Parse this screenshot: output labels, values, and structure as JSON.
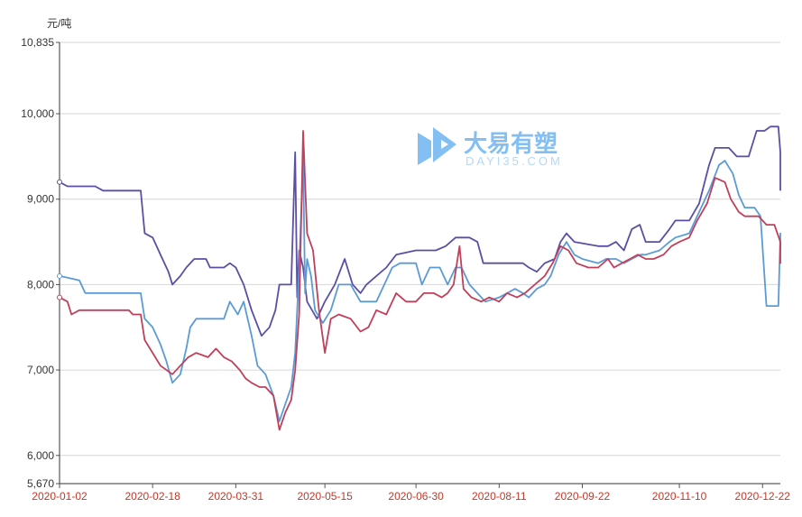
{
  "chart_data": {
    "type": "line",
    "y_unit": "元/吨",
    "ylim": [
      5670,
      10835
    ],
    "y_ticks": [
      {
        "value": 5670,
        "label": "5,670"
      },
      {
        "value": 6000,
        "label": "6,000"
      },
      {
        "value": 7000,
        "label": "7,000"
      },
      {
        "value": 8000,
        "label": "8,000"
      },
      {
        "value": 9000,
        "label": "9,000"
      },
      {
        "value": 10000,
        "label": "10,000"
      },
      {
        "value": 10835,
        "label": "10,835"
      }
    ],
    "x_range": [
      "2020-01-02",
      "2020-12-31"
    ],
    "x_ticks": [
      "2020-01-02",
      "2020-02-18",
      "2020-03-31",
      "2020-05-15",
      "2020-06-30",
      "2020-08-11",
      "2020-09-22",
      "2020-11-10",
      "2020-12-22"
    ],
    "grid": true,
    "legend": "none",
    "series": [
      {
        "color": "#5b4fa5",
        "points": [
          [
            "2020-01-02",
            9200
          ],
          [
            "2020-01-06",
            9150
          ],
          [
            "2020-01-20",
            9150
          ],
          [
            "2020-01-24",
            9100
          ],
          [
            "2020-02-05",
            9100
          ],
          [
            "2020-02-12",
            9100
          ],
          [
            "2020-02-14",
            8600
          ],
          [
            "2020-02-18",
            8550
          ],
          [
            "2020-02-22",
            8350
          ],
          [
            "2020-02-26",
            8150
          ],
          [
            "2020-02-28",
            8000
          ],
          [
            "2020-03-03",
            8100
          ],
          [
            "2020-03-06",
            8200
          ],
          [
            "2020-03-10",
            8300
          ],
          [
            "2020-03-16",
            8300
          ],
          [
            "2020-03-18",
            8200
          ],
          [
            "2020-03-25",
            8200
          ],
          [
            "2020-03-28",
            8250
          ],
          [
            "2020-03-31",
            8200
          ],
          [
            "2020-04-04",
            8000
          ],
          [
            "2020-04-08",
            7700
          ],
          [
            "2020-04-13",
            7400
          ],
          [
            "2020-04-17",
            7500
          ],
          [
            "2020-04-20",
            7700
          ],
          [
            "2020-04-22",
            8000
          ],
          [
            "2020-04-28",
            8000
          ],
          [
            "2020-04-30",
            9550
          ],
          [
            "2020-05-01",
            7850
          ],
          [
            "2020-05-02",
            8400
          ],
          [
            "2020-05-04",
            8200
          ],
          [
            "2020-05-06",
            7800
          ],
          [
            "2020-05-11",
            7600
          ],
          [
            "2020-05-13",
            7700
          ],
          [
            "2020-05-15",
            7800
          ],
          [
            "2020-05-20",
            8000
          ],
          [
            "2020-05-25",
            8300
          ],
          [
            "2020-05-29",
            8000
          ],
          [
            "2020-06-02",
            7900
          ],
          [
            "2020-06-05",
            8000
          ],
          [
            "2020-06-10",
            8100
          ],
          [
            "2020-06-15",
            8200
          ],
          [
            "2020-06-20",
            8350
          ],
          [
            "2020-06-30",
            8400
          ],
          [
            "2020-07-10",
            8400
          ],
          [
            "2020-07-15",
            8450
          ],
          [
            "2020-07-20",
            8550
          ],
          [
            "2020-07-27",
            8550
          ],
          [
            "2020-07-31",
            8500
          ],
          [
            "2020-08-03",
            8250
          ],
          [
            "2020-08-20",
            8250
          ],
          [
            "2020-08-23",
            8250
          ],
          [
            "2020-08-26",
            8200
          ],
          [
            "2020-08-30",
            8150
          ],
          [
            "2020-09-03",
            8250
          ],
          [
            "2020-09-08",
            8300
          ],
          [
            "2020-09-11",
            8500
          ],
          [
            "2020-09-14",
            8600
          ],
          [
            "2020-09-18",
            8500
          ],
          [
            "2020-09-30",
            8450
          ],
          [
            "2020-10-05",
            8450
          ],
          [
            "2020-10-09",
            8500
          ],
          [
            "2020-10-13",
            8400
          ],
          [
            "2020-10-17",
            8650
          ],
          [
            "2020-10-21",
            8700
          ],
          [
            "2020-10-24",
            8500
          ],
          [
            "2020-10-31",
            8500
          ],
          [
            "2020-11-05",
            8650
          ],
          [
            "2020-11-08",
            8750
          ],
          [
            "2020-11-15",
            8750
          ],
          [
            "2020-11-20",
            8950
          ],
          [
            "2020-11-25",
            9400
          ],
          [
            "2020-11-28",
            9600
          ],
          [
            "2020-12-05",
            9600
          ],
          [
            "2020-12-09",
            9500
          ],
          [
            "2020-12-15",
            9500
          ],
          [
            "2020-12-19",
            9800
          ],
          [
            "2020-12-23",
            9800
          ],
          [
            "2020-12-26",
            9850
          ],
          [
            "2020-12-30",
            9850
          ],
          [
            "2021-01-04",
            9550
          ],
          [
            "2021-01-06",
            9100
          ],
          [
            "2021-01-10",
            9100
          ]
        ]
      },
      {
        "color": "#5b9bd5",
        "points": [
          [
            "2020-01-02",
            8100
          ],
          [
            "2020-01-06",
            8080
          ],
          [
            "2020-01-12",
            8050
          ],
          [
            "2020-01-15",
            7900
          ],
          [
            "2020-02-06",
            7900
          ],
          [
            "2020-02-12",
            7900
          ],
          [
            "2020-02-14",
            7600
          ],
          [
            "2020-02-18",
            7500
          ],
          [
            "2020-02-22",
            7300
          ],
          [
            "2020-02-25",
            7100
          ],
          [
            "2020-02-28",
            6850
          ],
          [
            "2020-03-03",
            6950
          ],
          [
            "2020-03-06",
            7250
          ],
          [
            "2020-03-08",
            7500
          ],
          [
            "2020-03-11",
            7600
          ],
          [
            "2020-03-25",
            7600
          ],
          [
            "2020-03-28",
            7800
          ],
          [
            "2020-04-01",
            7650
          ],
          [
            "2020-04-04",
            7800
          ],
          [
            "2020-04-08",
            7400
          ],
          [
            "2020-04-11",
            7050
          ],
          [
            "2020-04-15",
            6950
          ],
          [
            "2020-04-19",
            6700
          ],
          [
            "2020-04-22",
            6400
          ],
          [
            "2020-04-25",
            6600
          ],
          [
            "2020-04-28",
            6800
          ],
          [
            "2020-04-30",
            7200
          ],
          [
            "2020-05-02",
            8200
          ],
          [
            "2020-05-04",
            9450
          ],
          [
            "2020-05-05",
            7900
          ],
          [
            "2020-05-06",
            8300
          ],
          [
            "2020-05-08",
            8100
          ],
          [
            "2020-05-10",
            7700
          ],
          [
            "2020-05-14",
            7550
          ],
          [
            "2020-05-18",
            7700
          ],
          [
            "2020-05-22",
            8000
          ],
          [
            "2020-05-28",
            8000
          ],
          [
            "2020-06-02",
            7800
          ],
          [
            "2020-06-10",
            7800
          ],
          [
            "2020-06-14",
            8000
          ],
          [
            "2020-06-18",
            8200
          ],
          [
            "2020-06-22",
            8250
          ],
          [
            "2020-06-30",
            8250
          ],
          [
            "2020-07-03",
            8000
          ],
          [
            "2020-07-07",
            8200
          ],
          [
            "2020-07-12",
            8200
          ],
          [
            "2020-07-16",
            8000
          ],
          [
            "2020-07-20",
            8200
          ],
          [
            "2020-07-23",
            8200
          ],
          [
            "2020-07-27",
            8000
          ],
          [
            "2020-07-31",
            7900
          ],
          [
            "2020-08-04",
            7800
          ],
          [
            "2020-08-11",
            7850
          ],
          [
            "2020-08-15",
            7900
          ],
          [
            "2020-08-19",
            7950
          ],
          [
            "2020-08-23",
            7900
          ],
          [
            "2020-08-26",
            7850
          ],
          [
            "2020-08-30",
            7950
          ],
          [
            "2020-09-03",
            8000
          ],
          [
            "2020-09-06",
            8100
          ],
          [
            "2020-09-10",
            8350
          ],
          [
            "2020-09-14",
            8500
          ],
          [
            "2020-09-18",
            8350
          ],
          [
            "2020-09-22",
            8300
          ],
          [
            "2020-09-30",
            8250
          ],
          [
            "2020-10-04",
            8300
          ],
          [
            "2020-10-09",
            8300
          ],
          [
            "2020-10-13",
            8250
          ],
          [
            "2020-10-17",
            8300
          ],
          [
            "2020-10-21",
            8350
          ],
          [
            "2020-10-24",
            8350
          ],
          [
            "2020-10-31",
            8400
          ],
          [
            "2020-11-05",
            8500
          ],
          [
            "2020-11-08",
            8550
          ],
          [
            "2020-11-15",
            8600
          ],
          [
            "2020-11-20",
            8850
          ],
          [
            "2020-11-25",
            9100
          ],
          [
            "2020-11-30",
            9400
          ],
          [
            "2020-12-03",
            9450
          ],
          [
            "2020-12-07",
            9300
          ],
          [
            "2020-12-10",
            9050
          ],
          [
            "2020-12-13",
            8900
          ],
          [
            "2020-12-18",
            8900
          ],
          [
            "2020-12-21",
            8800
          ],
          [
            "2020-12-24",
            7750
          ],
          [
            "2020-12-30",
            7750
          ],
          [
            "2021-01-01",
            8600
          ],
          [
            "2021-01-05",
            8500
          ],
          [
            "2021-01-07",
            8400
          ],
          [
            "2021-01-10",
            8400
          ]
        ]
      },
      {
        "color": "#c0405a",
        "points": [
          [
            "2020-01-02",
            7850
          ],
          [
            "2020-01-06",
            7800
          ],
          [
            "2020-01-08",
            7650
          ],
          [
            "2020-01-12",
            7700
          ],
          [
            "2020-02-06",
            7700
          ],
          [
            "2020-02-08",
            7650
          ],
          [
            "2020-02-12",
            7650
          ],
          [
            "2020-02-14",
            7350
          ],
          [
            "2020-02-18",
            7200
          ],
          [
            "2020-02-22",
            7050
          ],
          [
            "2020-02-28",
            6950
          ],
          [
            "2020-03-03",
            7050
          ],
          [
            "2020-03-07",
            7150
          ],
          [
            "2020-03-11",
            7200
          ],
          [
            "2020-03-17",
            7150
          ],
          [
            "2020-03-21",
            7250
          ],
          [
            "2020-03-25",
            7150
          ],
          [
            "2020-03-29",
            7100
          ],
          [
            "2020-04-02",
            7000
          ],
          [
            "2020-04-05",
            6900
          ],
          [
            "2020-04-08",
            6850
          ],
          [
            "2020-04-12",
            6800
          ],
          [
            "2020-04-15",
            6800
          ],
          [
            "2020-04-19",
            6700
          ],
          [
            "2020-04-22",
            6300
          ],
          [
            "2020-04-25",
            6500
          ],
          [
            "2020-04-28",
            6650
          ],
          [
            "2020-04-30",
            7000
          ],
          [
            "2020-05-02",
            7650
          ],
          [
            "2020-05-04",
            9800
          ],
          [
            "2020-05-06",
            8600
          ],
          [
            "2020-05-09",
            8400
          ],
          [
            "2020-05-12",
            7700
          ],
          [
            "2020-05-15",
            7200
          ],
          [
            "2020-05-18",
            7600
          ],
          [
            "2020-05-22",
            7650
          ],
          [
            "2020-05-28",
            7600
          ],
          [
            "2020-06-02",
            7450
          ],
          [
            "2020-06-06",
            7500
          ],
          [
            "2020-06-10",
            7700
          ],
          [
            "2020-06-15",
            7650
          ],
          [
            "2020-06-20",
            7900
          ],
          [
            "2020-06-25",
            7800
          ],
          [
            "2020-06-30",
            7800
          ],
          [
            "2020-07-04",
            7900
          ],
          [
            "2020-07-09",
            7900
          ],
          [
            "2020-07-13",
            7850
          ],
          [
            "2020-07-16",
            7900
          ],
          [
            "2020-07-19",
            8000
          ],
          [
            "2020-07-22",
            8450
          ],
          [
            "2020-07-24",
            7950
          ],
          [
            "2020-07-28",
            7850
          ],
          [
            "2020-08-02",
            7800
          ],
          [
            "2020-08-06",
            7850
          ],
          [
            "2020-08-11",
            7800
          ],
          [
            "2020-08-15",
            7900
          ],
          [
            "2020-08-20",
            7850
          ],
          [
            "2020-08-24",
            7900
          ],
          [
            "2020-08-29",
            8000
          ],
          [
            "2020-09-03",
            8100
          ],
          [
            "2020-09-07",
            8250
          ],
          [
            "2020-09-11",
            8450
          ],
          [
            "2020-09-15",
            8400
          ],
          [
            "2020-09-19",
            8250
          ],
          [
            "2020-09-25",
            8200
          ],
          [
            "2020-09-30",
            8200
          ],
          [
            "2020-10-05",
            8300
          ],
          [
            "2020-10-08",
            8200
          ],
          [
            "2020-10-12",
            8250
          ],
          [
            "2020-10-16",
            8300
          ],
          [
            "2020-10-20",
            8350
          ],
          [
            "2020-10-24",
            8300
          ],
          [
            "2020-10-28",
            8300
          ],
          [
            "2020-11-02",
            8350
          ],
          [
            "2020-11-06",
            8450
          ],
          [
            "2020-11-10",
            8500
          ],
          [
            "2020-11-15",
            8550
          ],
          [
            "2020-11-19",
            8750
          ],
          [
            "2020-11-24",
            8950
          ],
          [
            "2020-11-28",
            9250
          ],
          [
            "2020-12-03",
            9200
          ],
          [
            "2020-12-06",
            9000
          ],
          [
            "2020-12-10",
            8850
          ],
          [
            "2020-12-13",
            8800
          ],
          [
            "2020-12-20",
            8800
          ],
          [
            "2020-12-24",
            8700
          ],
          [
            "2020-12-28",
            8700
          ],
          [
            "2021-01-01",
            8500
          ],
          [
            "2021-01-05",
            8450
          ],
          [
            "2021-01-08",
            8250
          ],
          [
            "2021-01-10",
            8300
          ]
        ]
      }
    ]
  },
  "watermark": {
    "brand_text": "大易有塑",
    "domain_text": "DAYI35.COM"
  }
}
